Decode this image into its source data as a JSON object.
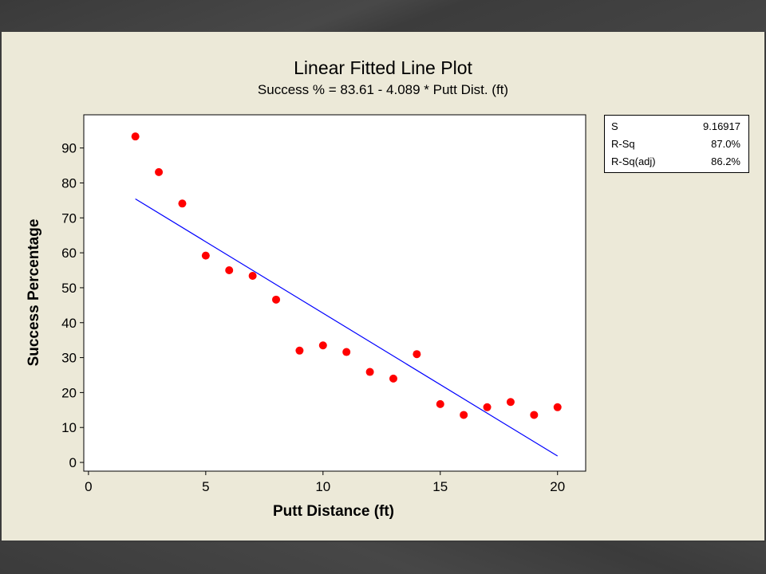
{
  "chart_data": {
    "type": "scatter",
    "title": "Linear Fitted Line Plot",
    "subtitle": "Success % =  83.61 - 4.089 * Putt Dist. (ft)",
    "xlabel": "Putt Distance (ft)",
    "ylabel": "Success Percentage",
    "xlim": [
      -0.2,
      21.2
    ],
    "ylim": [
      -2.5,
      99.5
    ],
    "xticks": [
      0,
      5,
      10,
      15,
      20
    ],
    "yticks": [
      0,
      10,
      20,
      30,
      40,
      50,
      60,
      70,
      80,
      90
    ],
    "grid": false,
    "points": {
      "x": [
        2,
        3,
        4,
        5,
        6,
        7,
        8,
        9,
        10,
        11,
        12,
        13,
        14,
        15,
        16,
        17,
        18,
        19,
        20
      ],
      "y": [
        93.3,
        83.1,
        74.1,
        59.2,
        55.0,
        53.4,
        46.6,
        32.0,
        33.5,
        31.6,
        25.9,
        24.0,
        31.0,
        16.7,
        13.6,
        15.8,
        17.3,
        13.6,
        15.8
      ],
      "color": "#ff0000"
    },
    "fit_line": {
      "intercept": 83.61,
      "slope": -4.089,
      "x_range": [
        2,
        20
      ],
      "color": "#0000ff"
    },
    "stats": [
      {
        "label": "S",
        "value": "9.16917"
      },
      {
        "label": "R-Sq",
        "value": "87.0%"
      },
      {
        "label": "R-Sq(adj)",
        "value": "86.2%"
      }
    ]
  }
}
